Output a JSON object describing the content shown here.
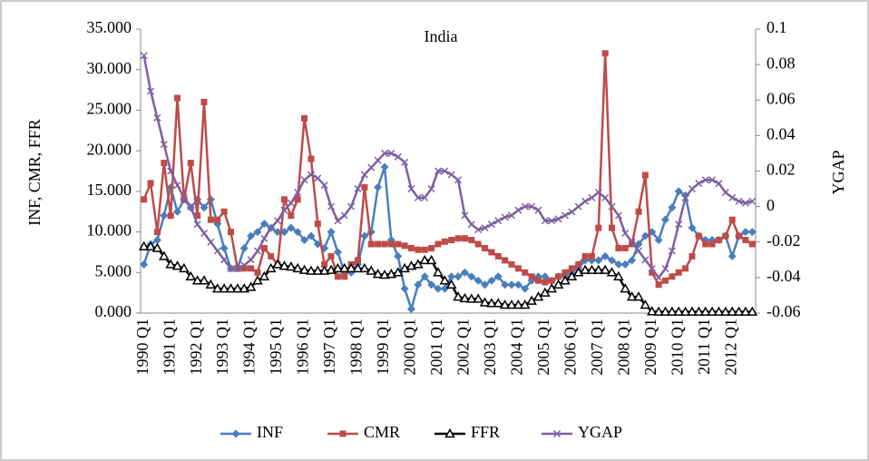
{
  "chart_data": {
    "type": "line",
    "title": "India",
    "y_label": "INF, CMR, FFR",
    "y2_label": "YGAP",
    "categories": [
      "1990 Q1",
      null,
      null,
      null,
      "1991 Q1",
      null,
      null,
      null,
      "1992 Q1",
      null,
      null,
      null,
      "1993 Q1",
      null,
      null,
      null,
      "1994 Q1",
      null,
      null,
      null,
      "1995 Q1",
      null,
      null,
      null,
      "1996 Q1",
      null,
      null,
      null,
      "1997 Q1",
      null,
      null,
      null,
      "1998 Q1",
      null,
      null,
      null,
      "1999 Q1",
      null,
      null,
      null,
      "2000 Q1",
      null,
      null,
      null,
      "2001 Q1",
      null,
      null,
      null,
      "2002 Q1",
      null,
      null,
      null,
      "2003 Q1",
      null,
      null,
      null,
      "2004 Q1",
      null,
      null,
      null,
      "2005 Q1",
      null,
      null,
      null,
      "2006 Q1",
      null,
      null,
      null,
      "2007 Q1",
      null,
      null,
      null,
      "2008 Q1",
      null,
      null,
      null,
      "2009 Q1",
      null,
      null,
      null,
      "2010 Q1",
      null,
      null,
      null,
      "2011 Q1",
      null,
      null,
      null,
      "2012 Q1",
      null,
      null,
      null
    ],
    "ylim": [
      0,
      35
    ],
    "yticks": [
      {
        "value": 0,
        "label": "0.000"
      },
      {
        "value": 5,
        "label": "5.000"
      },
      {
        "value": 10,
        "label": "10.000"
      },
      {
        "value": 15,
        "label": "15.000"
      },
      {
        "value": 20,
        "label": "20.000"
      },
      {
        "value": 25,
        "label": "25.000"
      },
      {
        "value": 30,
        "label": "30.000"
      },
      {
        "value": 35,
        "label": "35.000"
      }
    ],
    "y2lim": [
      -0.06,
      0.1
    ],
    "y2ticks": [
      -0.06,
      -0.04,
      -0.02,
      0,
      0.02,
      0.04,
      0.06,
      0.08,
      0.1
    ],
    "legend": "bottom",
    "series": [
      {
        "name": "INF",
        "color": "#4a7ebb",
        "marker": "diamond",
        "values": [
          6,
          8.5,
          9,
          12,
          15.5,
          12.5,
          14,
          13,
          14,
          13,
          14,
          11,
          8,
          5.5,
          5.5,
          8,
          9.5,
          10,
          11,
          10.5,
          10,
          10,
          10.5,
          10,
          9,
          9.5,
          8.5,
          8,
          10,
          7.5,
          5,
          5,
          6,
          9.5,
          10,
          15.5,
          18,
          9,
          7,
          3,
          0.5,
          3.5,
          4.5,
          3.5,
          3,
          3,
          4.5,
          4.5,
          5,
          4.5,
          4,
          3.5,
          4,
          4.5,
          3.5,
          3.5,
          3.5,
          3,
          4,
          4.5,
          4.5,
          4,
          4.5,
          4.5,
          5,
          5.5,
          6.5,
          6.5,
          6.5,
          7,
          6.5,
          6,
          6,
          6.5,
          8.5,
          9.5,
          10,
          9,
          11.5,
          13,
          15,
          14.5,
          10.5,
          9.5,
          9,
          9,
          9,
          9.5,
          7,
          9.5,
          10,
          10
        ]
      },
      {
        "name": "CMR",
        "color": "#be4b48",
        "marker": "square",
        "values": [
          14,
          16,
          10,
          18.5,
          12,
          26.5,
          14,
          18.5,
          12,
          26,
          11.5,
          11.5,
          12.5,
          10,
          5.5,
          5.5,
          5.5,
          5,
          8,
          7,
          6,
          14,
          12,
          14,
          24,
          19,
          11,
          6,
          7,
          4.5,
          4.5,
          6,
          6.5,
          15.5,
          8.5,
          8.5,
          8.5,
          8.5,
          8.5,
          8.3,
          8,
          7.8,
          7.8,
          8,
          8.5,
          8.8,
          9,
          9.2,
          9.2,
          9,
          8.5,
          8,
          7.5,
          7,
          6.5,
          6,
          5.5,
          5,
          4.5,
          4,
          3.8,
          4,
          4.5,
          5,
          5.5,
          6,
          7,
          7,
          10.5,
          32,
          10.5,
          8,
          8,
          8.5,
          12.5,
          17,
          5,
          3.5,
          4,
          4.5,
          5,
          5.5,
          7,
          9.5,
          8.5,
          8.5,
          9,
          9.5,
          11.5,
          9.5,
          9,
          8.5
        ]
      },
      {
        "name": "FFR",
        "color": "#000000",
        "marker": "triangle",
        "values": [
          8.2,
          8.2,
          8,
          7,
          6,
          5.8,
          5.5,
          4.5,
          4,
          4,
          3.5,
          3,
          3,
          3,
          3,
          3,
          3.2,
          4,
          4.5,
          5.5,
          6,
          5.8,
          5.7,
          5.5,
          5.3,
          5.2,
          5.2,
          5.2,
          5.3,
          5.5,
          5.5,
          5.5,
          5.5,
          5.5,
          5.2,
          4.8,
          4.7,
          4.8,
          5,
          5.5,
          5.8,
          6,
          6.5,
          6.5,
          5,
          4,
          3.5,
          2,
          1.8,
          1.75,
          1.75,
          1.3,
          1.2,
          1.2,
          1,
          1,
          1,
          1,
          1.5,
          2,
          2.5,
          3,
          3.5,
          4,
          4.5,
          5,
          5.3,
          5.3,
          5.3,
          5.3,
          5,
          4.5,
          3,
          2,
          2,
          1,
          0.2,
          0.15,
          0.15,
          0.15,
          0.15,
          0.15,
          0.15,
          0.15,
          0.15,
          0.15,
          0.15,
          0.15,
          0.15,
          0.15,
          0.15,
          0.15
        ]
      },
      {
        "name": "YGAP",
        "color": "#7d60a0",
        "marker": "x",
        "axis": "y2",
        "values": [
          0.085,
          0.065,
          0.05,
          0.035,
          0.02,
          0.012,
          0.005,
          0,
          -0.01,
          -0.015,
          -0.02,
          -0.025,
          -0.03,
          -0.035,
          -0.035,
          -0.033,
          -0.03,
          -0.025,
          -0.018,
          -0.012,
          -0.008,
          -0.002,
          0.002,
          0.008,
          0.015,
          0.018,
          0.016,
          0.012,
          0,
          -0.008,
          -0.005,
          0,
          0.01,
          0.018,
          0.022,
          0.026,
          0.03,
          0.03,
          0.028,
          0.025,
          0.01,
          0.005,
          0.005,
          0.01,
          0.02,
          0.02,
          0.018,
          0.015,
          -0.005,
          -0.01,
          -0.013,
          -0.012,
          -0.01,
          -0.008,
          -0.006,
          -0.005,
          -0.002,
          0,
          0,
          -0.002,
          -0.008,
          -0.008,
          -0.007,
          -0.005,
          -0.003,
          0,
          0.003,
          0.005,
          0.008,
          0.005,
          0,
          -0.005,
          -0.015,
          -0.02,
          -0.025,
          -0.03,
          -0.035,
          -0.04,
          -0.035,
          -0.025,
          -0.01,
          0.005,
          0.01,
          0.013,
          0.015,
          0.015,
          0.013,
          0.008,
          0.005,
          0.003,
          0.002,
          0.003
        ]
      }
    ]
  }
}
